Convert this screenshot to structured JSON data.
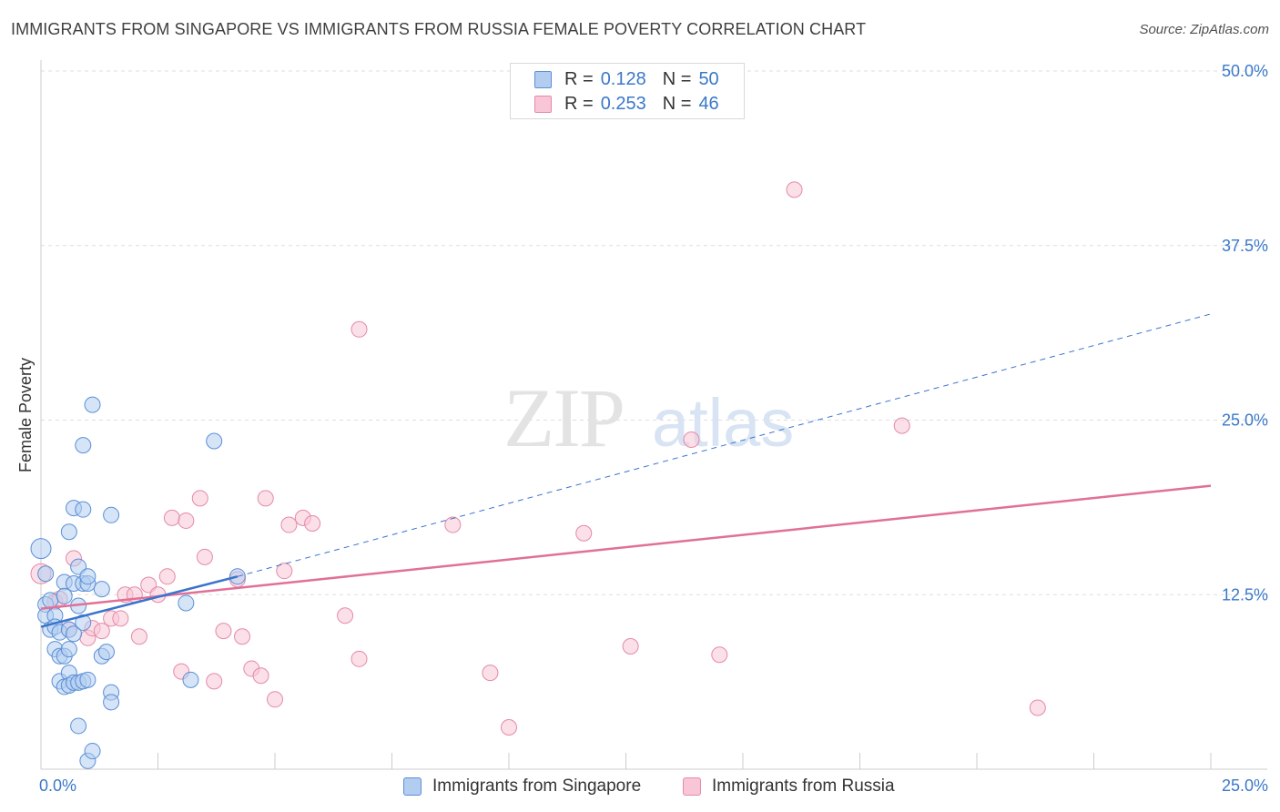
{
  "header": {
    "title": "IMMIGRANTS FROM SINGAPORE VS IMMIGRANTS FROM RUSSIA FEMALE POVERTY CORRELATION CHART",
    "source": "Source: ZipAtlas.com"
  },
  "legend_top": {
    "r_label": "R =",
    "n_label": "N =",
    "rows": [
      {
        "r": "0.128",
        "n": "50"
      },
      {
        "r": "0.253",
        "n": "46"
      }
    ]
  },
  "legend_bottom": [
    "Immigrants from Singapore",
    "Immigrants from Russia"
  ],
  "colors": {
    "singapore_fill": "#b3cdf0",
    "singapore_stroke": "#5b8fd6",
    "singapore_line": "#3a74cc",
    "russia_fill": "#f8c6d6",
    "russia_stroke": "#e48aa8",
    "russia_line": "#e07098",
    "tick_label": "#3a78c9",
    "grid": "#dddddd",
    "axis": "#cccccc"
  },
  "watermark": {
    "zip": "ZIP",
    "atlas": "atlas"
  },
  "chart_data": {
    "type": "scatter",
    "title": "IMMIGRANTS FROM SINGAPORE VS IMMIGRANTS FROM RUSSIA FEMALE POVERTY CORRELATION CHART",
    "xlabel": "",
    "ylabel": "Female Poverty",
    "xlim": [
      0,
      25
    ],
    "ylim": [
      0,
      50
    ],
    "x_tick_labels": [
      "0.0%",
      "25.0%"
    ],
    "y_ticks": [
      12.5,
      25.0,
      37.5,
      50.0
    ],
    "y_tick_labels": [
      "12.5%",
      "25.0%",
      "37.5%",
      "50.0%"
    ],
    "grid": true,
    "series": [
      {
        "name": "Immigrants from Singapore",
        "R": 0.128,
        "N": 50,
        "trend": {
          "x0": 0.0,
          "y0": 10.2,
          "x1": 4.2,
          "y1": 13.8,
          "dashed_to_x": 25.0,
          "dashed_to_y": 32.6
        },
        "points": [
          [
            0.0,
            15.8
          ],
          [
            0.1,
            14.0
          ],
          [
            0.1,
            11.8
          ],
          [
            0.1,
            11.0
          ],
          [
            0.2,
            12.1
          ],
          [
            0.2,
            10.0
          ],
          [
            0.3,
            11.0
          ],
          [
            0.3,
            10.2
          ],
          [
            0.3,
            8.6
          ],
          [
            0.4,
            9.8
          ],
          [
            0.4,
            8.1
          ],
          [
            0.4,
            6.3
          ],
          [
            0.5,
            5.9
          ],
          [
            0.5,
            13.4
          ],
          [
            0.5,
            12.4
          ],
          [
            0.5,
            8.1
          ],
          [
            0.6,
            17.0
          ],
          [
            0.6,
            6.9
          ],
          [
            0.6,
            6.0
          ],
          [
            0.6,
            8.6
          ],
          [
            0.6,
            10.0
          ],
          [
            0.7,
            18.7
          ],
          [
            0.7,
            9.7
          ],
          [
            0.7,
            6.2
          ],
          [
            0.7,
            13.3
          ],
          [
            0.8,
            14.5
          ],
          [
            0.8,
            6.2
          ],
          [
            0.8,
            11.7
          ],
          [
            0.8,
            3.1
          ],
          [
            0.9,
            6.3
          ],
          [
            0.9,
            13.3
          ],
          [
            0.9,
            18.6
          ],
          [
            0.9,
            23.2
          ],
          [
            0.9,
            10.5
          ],
          [
            1.0,
            6.4
          ],
          [
            1.0,
            13.3
          ],
          [
            1.0,
            0.6
          ],
          [
            1.0,
            13.8
          ],
          [
            1.1,
            1.3
          ],
          [
            1.1,
            26.1
          ],
          [
            1.3,
            12.9
          ],
          [
            1.3,
            8.1
          ],
          [
            1.4,
            8.4
          ],
          [
            1.5,
            18.2
          ],
          [
            1.5,
            5.5
          ],
          [
            1.5,
            4.8
          ],
          [
            3.1,
            11.9
          ],
          [
            3.2,
            6.4
          ],
          [
            3.7,
            23.5
          ],
          [
            4.2,
            13.8
          ]
        ]
      },
      {
        "name": "Immigrants from Russia",
        "R": 0.253,
        "N": 46,
        "trend": {
          "x0": 0.0,
          "y0": 11.5,
          "x1": 25.0,
          "y1": 20.3
        },
        "points": [
          [
            0.0,
            14.0
          ],
          [
            0.3,
            12.0
          ],
          [
            0.4,
            12.2
          ],
          [
            0.6,
            10.0
          ],
          [
            0.7,
            15.1
          ],
          [
            1.0,
            9.4
          ],
          [
            1.1,
            10.1
          ],
          [
            1.3,
            9.9
          ],
          [
            1.5,
            10.8
          ],
          [
            1.7,
            10.8
          ],
          [
            1.8,
            12.5
          ],
          [
            2.0,
            12.5
          ],
          [
            2.1,
            9.5
          ],
          [
            2.3,
            13.2
          ],
          [
            2.5,
            12.5
          ],
          [
            2.7,
            13.8
          ],
          [
            2.8,
            18.0
          ],
          [
            3.0,
            7.0
          ],
          [
            3.1,
            17.8
          ],
          [
            3.4,
            19.4
          ],
          [
            3.5,
            15.2
          ],
          [
            3.7,
            6.3
          ],
          [
            3.9,
            9.9
          ],
          [
            4.2,
            13.6
          ],
          [
            4.3,
            9.5
          ],
          [
            4.5,
            7.2
          ],
          [
            4.7,
            6.7
          ],
          [
            4.8,
            19.4
          ],
          [
            5.0,
            5.0
          ],
          [
            5.2,
            14.2
          ],
          [
            5.3,
            17.5
          ],
          [
            5.6,
            18.0
          ],
          [
            5.8,
            17.6
          ],
          [
            6.5,
            11.0
          ],
          [
            6.8,
            31.5
          ],
          [
            6.8,
            7.9
          ],
          [
            8.8,
            17.5
          ],
          [
            9.6,
            6.9
          ],
          [
            10.0,
            3.0
          ],
          [
            11.6,
            16.9
          ],
          [
            12.6,
            8.8
          ],
          [
            13.9,
            23.6
          ],
          [
            14.5,
            8.2
          ],
          [
            16.1,
            41.5
          ],
          [
            18.4,
            24.6
          ],
          [
            21.3,
            4.4
          ]
        ]
      }
    ]
  }
}
